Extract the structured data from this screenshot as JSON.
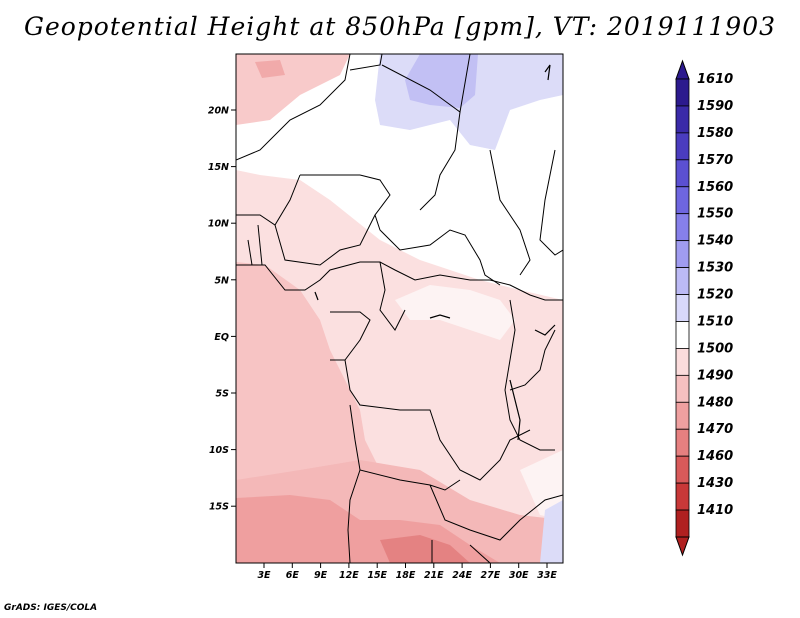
{
  "title": "Geopotential Height at 850hPa [gpm], VT: 2019111903",
  "credit": "GrADS: IGES/COLA",
  "map": {
    "lat_labels": [
      "20N",
      "15N",
      "10N",
      "5N",
      "EQ",
      "5S",
      "10S",
      "15S"
    ],
    "lon_labels": [
      "3E",
      "6E",
      "9E",
      "12E",
      "15E",
      "18E",
      "21E",
      "24E",
      "27E",
      "30E",
      "33E"
    ]
  },
  "colorbar": {
    "levels": [
      "1610",
      "1590",
      "1580",
      "1570",
      "1560",
      "1550",
      "1540",
      "1530",
      "1520",
      "1510",
      "1500",
      "1490",
      "1480",
      "1470",
      "1460",
      "1430",
      "1410"
    ],
    "colors": [
      "#2c1a8e",
      "#3a2aa8",
      "#4a3cbf",
      "#5b50d2",
      "#6e66e0",
      "#8680ea",
      "#a09cf0",
      "#bcbaf5",
      "#d8d8fa",
      "#ffffff",
      "#fbdcdc",
      "#f6c0c0",
      "#efa0a0",
      "#e68080",
      "#d85a5a",
      "#c83838",
      "#b02020"
    ]
  }
}
